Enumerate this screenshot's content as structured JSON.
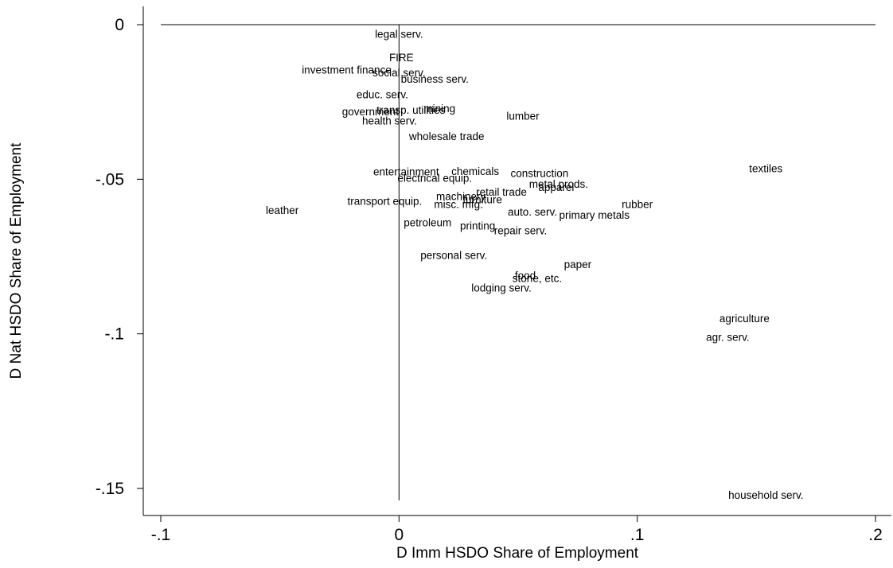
{
  "chart_data": {
    "type": "scatter",
    "xlabel": "D Imm HSDO Share of Employment",
    "ylabel": "D Nat HSDO Share of Employment",
    "xlim": [
      -0.1,
      0.2
    ],
    "ylim": [
      -0.152,
      0
    ],
    "x_ticks": [
      {
        "value": -0.1,
        "label": "-.1"
      },
      {
        "value": 0,
        "label": "0"
      },
      {
        "value": 0.1,
        "label": ".1"
      },
      {
        "value": 0.2,
        "label": ".2"
      }
    ],
    "y_ticks": [
      {
        "value": 0,
        "label": "0"
      },
      {
        "value": -0.05,
        "label": "-.05"
      },
      {
        "value": -0.1,
        "label": "-.1"
      },
      {
        "value": -0.15,
        "label": "-.15"
      }
    ],
    "reference_lines": {
      "horizontal_y": 0,
      "vertical_x": 0
    },
    "grid": false,
    "marker": "label-only",
    "points": [
      {
        "label": "legal serv.",
        "x": 0.0,
        "y": -0.003
      },
      {
        "label": "FIRE",
        "x": 0.001,
        "y": -0.0105
      },
      {
        "label": "investment finance",
        "x": -0.022,
        "y": -0.0145
      },
      {
        "label": "social serv.",
        "x": 0.0,
        "y": -0.0155
      },
      {
        "label": "business serv.",
        "x": 0.015,
        "y": -0.0175
      },
      {
        "label": "educ. serv.",
        "x": -0.007,
        "y": -0.0225
      },
      {
        "label": "transp. utilities",
        "x": 0.005,
        "y": -0.0275
      },
      {
        "label": "mining",
        "x": 0.017,
        "y": -0.027
      },
      {
        "label": "government",
        "x": -0.012,
        "y": -0.028
      },
      {
        "label": "lumber",
        "x": 0.052,
        "y": -0.0295
      },
      {
        "label": "health serv.",
        "x": -0.004,
        "y": -0.031
      },
      {
        "label": "wholesale trade",
        "x": 0.02,
        "y": -0.036
      },
      {
        "label": "textiles",
        "x": 0.154,
        "y": -0.0465
      },
      {
        "label": "entertainment",
        "x": 0.003,
        "y": -0.0475
      },
      {
        "label": "chemicals",
        "x": 0.032,
        "y": -0.0473
      },
      {
        "label": "construction",
        "x": 0.059,
        "y": -0.048
      },
      {
        "label": "electrical equip.",
        "x": 0.015,
        "y": -0.0495
      },
      {
        "label": "metal prods.",
        "x": 0.067,
        "y": -0.0515
      },
      {
        "label": "apparel",
        "x": 0.066,
        "y": -0.0525
      },
      {
        "label": "retail trade",
        "x": 0.043,
        "y": -0.054
      },
      {
        "label": "machinery",
        "x": 0.026,
        "y": -0.0555
      },
      {
        "label": "furniture",
        "x": 0.035,
        "y": -0.0565
      },
      {
        "label": "transport equip.",
        "x": -0.006,
        "y": -0.057
      },
      {
        "label": "misc. mfg.",
        "x": 0.025,
        "y": -0.058
      },
      {
        "label": "rubber",
        "x": 0.1,
        "y": -0.058
      },
      {
        "label": "leather",
        "x": -0.049,
        "y": -0.06
      },
      {
        "label": "auto. serv.",
        "x": 0.056,
        "y": -0.0605
      },
      {
        "label": "primary metals",
        "x": 0.082,
        "y": -0.0615
      },
      {
        "label": "petroleum",
        "x": 0.012,
        "y": -0.064
      },
      {
        "label": "printing",
        "x": 0.033,
        "y": -0.065
      },
      {
        "label": "repair serv.",
        "x": 0.051,
        "y": -0.0665
      },
      {
        "label": "personal serv.",
        "x": 0.023,
        "y": -0.0745
      },
      {
        "label": "paper",
        "x": 0.075,
        "y": -0.0775
      },
      {
        "label": "food",
        "x": 0.053,
        "y": -0.081
      },
      {
        "label": "stone, etc.",
        "x": 0.058,
        "y": -0.082
      },
      {
        "label": "lodging serv.",
        "x": 0.043,
        "y": -0.085
      },
      {
        "label": "agriculture",
        "x": 0.145,
        "y": -0.095
      },
      {
        "label": "agr. serv.",
        "x": 0.138,
        "y": -0.101
      },
      {
        "label": "household serv.",
        "x": 0.154,
        "y": -0.152
      }
    ]
  }
}
